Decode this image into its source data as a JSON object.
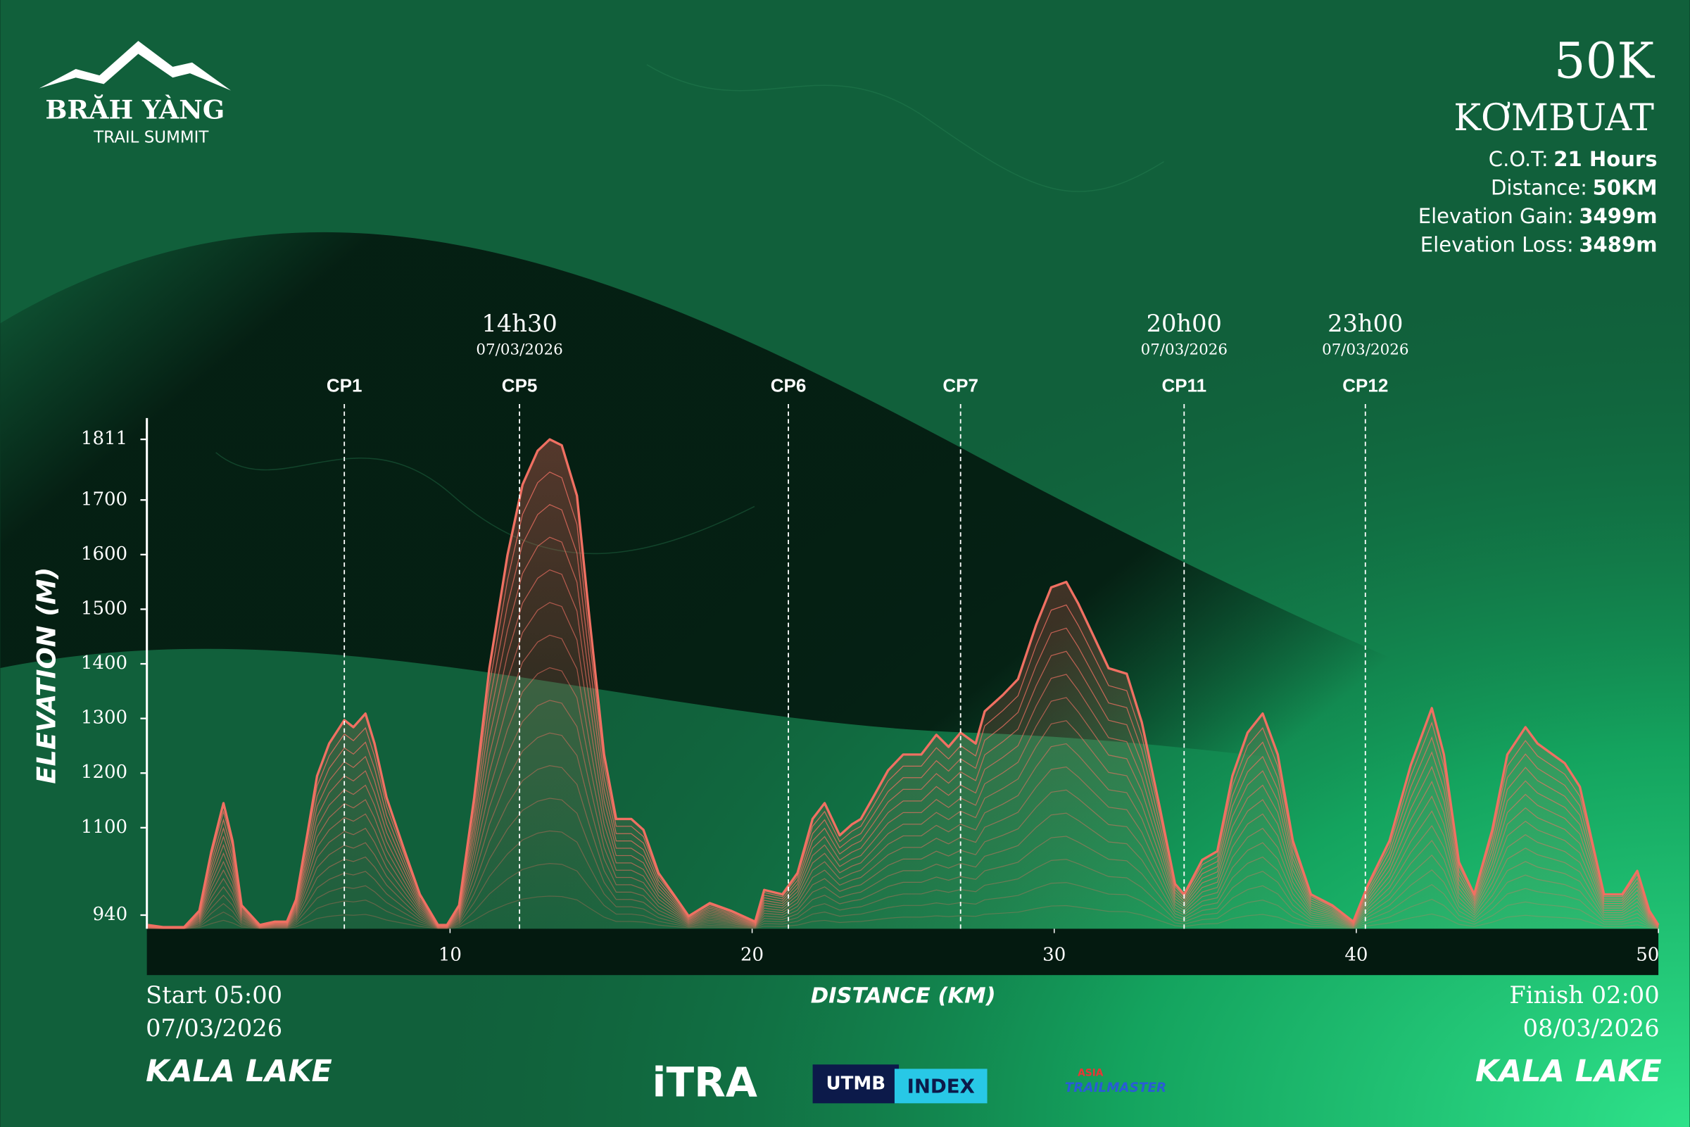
{
  "header": {
    "logo_line1": "BRĂH YÀNG",
    "logo_line2": "TRAIL SUMMIT",
    "race": "50K",
    "route": "KƠMBUAT",
    "info": [
      {
        "label": "C.O.T:",
        "value": "21 Hours"
      },
      {
        "label": "Distance:",
        "value": "50KM"
      },
      {
        "label": "Elevation Gain:",
        "value": "3499m"
      },
      {
        "label": "Elevation Loss:",
        "value": "3489m"
      }
    ]
  },
  "chart_data": {
    "type": "area",
    "x_label": "DISTANCE (KM)",
    "y_label": "ELEVATION (M)",
    "xlim": [
      0,
      50
    ],
    "xticks": [
      10,
      20,
      30,
      40,
      50
    ],
    "ylim": [
      915,
      1850
    ],
    "yticks": [
      940,
      1100,
      1200,
      1300,
      1400,
      1500,
      1600,
      1700,
      1811
    ],
    "color": "#f07062",
    "x": [
      0,
      0.5,
      1.2,
      1.7,
      2.1,
      2.5,
      2.8,
      3.1,
      3.7,
      4.2,
      4.6,
      4.9,
      5.3,
      5.6,
      6.0,
      6.5,
      6.8,
      7.2,
      7.5,
      7.9,
      8.5,
      9.0,
      9.6,
      9.9,
      10.3,
      10.8,
      11.3,
      11.9,
      12.4,
      12.9,
      13.3,
      13.7,
      14.2,
      14.6,
      15.1,
      15.5,
      16.0,
      16.4,
      16.9,
      17.4,
      17.9,
      18.6,
      19.3,
      20.1,
      20.4,
      21.0,
      21.5,
      22.0,
      22.4,
      22.9,
      23.3,
      23.6,
      24.0,
      24.5,
      25.0,
      25.6,
      26.1,
      26.5,
      26.9,
      27.4,
      27.7,
      28.3,
      28.8,
      29.4,
      29.9,
      30.4,
      30.8,
      31.3,
      31.8,
      32.4,
      32.9,
      33.5,
      34.0,
      34.3,
      34.9,
      35.4,
      35.9,
      36.4,
      36.9,
      37.4,
      37.9,
      38.5,
      39.2,
      39.9,
      40.4,
      41.1,
      41.8,
      42.5,
      42.9,
      43.4,
      43.9,
      44.5,
      45.0,
      45.6,
      46.0,
      46.5,
      46.9,
      47.4,
      47.8,
      48.2,
      48.8,
      49.3,
      49.7,
      50
    ],
    "values": [
      922,
      918,
      918,
      948,
      1057,
      1145,
      1076,
      958,
      922,
      928,
      928,
      968,
      1096,
      1195,
      1254,
      1297,
      1284,
      1309,
      1254,
      1155,
      1057,
      978,
      922,
      922,
      958,
      1155,
      1392,
      1599,
      1728,
      1790,
      1811,
      1800,
      1708,
      1491,
      1234,
      1116,
      1116,
      1096,
      1017,
      978,
      938,
      962,
      948,
      928,
      986,
      978,
      1017,
      1116,
      1145,
      1086,
      1106,
      1116,
      1155,
      1205,
      1234,
      1234,
      1270,
      1248,
      1274,
      1254,
      1313,
      1343,
      1372,
      1471,
      1540,
      1550,
      1510,
      1451,
      1392,
      1382,
      1293,
      1136,
      997,
      978,
      1041,
      1057,
      1195,
      1274,
      1309,
      1234,
      1076,
      978,
      958,
      928,
      997,
      1076,
      1214,
      1319,
      1234,
      1037,
      978,
      1096,
      1234,
      1284,
      1254,
      1234,
      1218,
      1175,
      1076,
      978,
      978,
      1021,
      948,
      922
    ],
    "checkpoints": [
      {
        "label": "CP1",
        "km": 6.5
      },
      {
        "label": "CP5",
        "km": 12.3,
        "time": "14h30",
        "date": "07/03/2026"
      },
      {
        "label": "CP6",
        "km": 21.2
      },
      {
        "label": "CP7",
        "km": 26.9
      },
      {
        "label": "CP11",
        "km": 34.3,
        "time": "20h00",
        "date": "07/03/2026"
      },
      {
        "label": "CP12",
        "km": 40.3,
        "time": "23h00",
        "date": "07/03/2026"
      }
    ]
  },
  "footer": {
    "start": "Start 05:00",
    "start_date": "07/03/2026",
    "start_place": "KALA LAKE",
    "finish": "Finish 02:00",
    "finish_date": "08/03/2026",
    "finish_place": "KALA LAKE",
    "logos": [
      "iTRA",
      "UTMB",
      "INDEX",
      "ASIA",
      "TRAILMASTER"
    ]
  }
}
